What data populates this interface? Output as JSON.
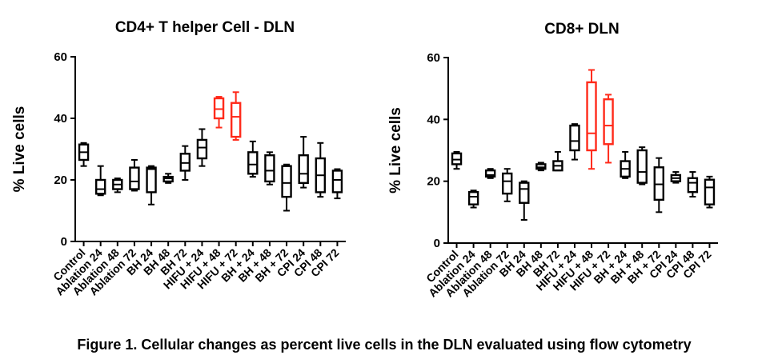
{
  "caption": "Figure 1. Cellular changes as percent live cells in the DLN evaluated using flow cytometry",
  "colors": {
    "default": "#000000",
    "highlight": "#ff2a1a"
  },
  "chart_data": [
    {
      "type": "boxplot",
      "title": "CD4+ T helper Cell - DLN",
      "xlabel": "",
      "ylabel": "% Live cells",
      "ylim": [
        0,
        60
      ],
      "yticks": [
        0,
        20,
        40,
        60
      ],
      "categories": [
        "Control",
        "Ablation 24",
        "Ablation 48",
        "Ablation 72",
        "BH 24",
        "BH 48",
        "BH 72",
        "HIFU + 24",
        "HIFU + 48",
        "HIFU + 72",
        "BH + 24",
        "BH + 48",
        "BH + 72",
        "CPI 24",
        "CPI 48",
        "CPI 72"
      ],
      "highlight": [
        "HIFU + 48",
        "HIFU + 72"
      ],
      "boxes": [
        {
          "min": 24.5,
          "q1": 26.5,
          "median": 29,
          "q3": 31.5,
          "max": 32
        },
        {
          "min": 15,
          "q1": 15.5,
          "median": 17,
          "q3": 20,
          "max": 24.5
        },
        {
          "min": 16,
          "q1": 17,
          "median": 18.5,
          "q3": 20,
          "max": 20.5
        },
        {
          "min": 16.5,
          "q1": 17,
          "median": 19.5,
          "q3": 24,
          "max": 26.5
        },
        {
          "min": 12,
          "q1": 16,
          "median": 23.5,
          "q3": 24,
          "max": 24.5
        },
        {
          "min": 19,
          "q1": 19.5,
          "median": 20.5,
          "q3": 21,
          "max": 22
        },
        {
          "min": 20,
          "q1": 23,
          "median": 25.5,
          "q3": 28.5,
          "max": 31
        },
        {
          "min": 24.5,
          "q1": 27,
          "median": 30.5,
          "q3": 33,
          "max": 36.5
        },
        {
          "min": 37,
          "q1": 40,
          "median": 43,
          "q3": 46.5,
          "max": 47
        },
        {
          "min": 33,
          "q1": 34,
          "median": 40.5,
          "q3": 45,
          "max": 48.5
        },
        {
          "min": 21,
          "q1": 22,
          "median": 25,
          "q3": 29,
          "max": 32.5
        },
        {
          "min": 18.5,
          "q1": 19.5,
          "median": 23,
          "q3": 28,
          "max": 29
        },
        {
          "min": 10,
          "q1": 14.5,
          "median": 19,
          "q3": 24.5,
          "max": 25
        },
        {
          "min": 17.5,
          "q1": 19,
          "median": 22,
          "q3": 28,
          "max": 34
        },
        {
          "min": 14.5,
          "q1": 16,
          "median": 21.5,
          "q3": 27,
          "max": 32
        },
        {
          "min": 14,
          "q1": 16,
          "median": 20,
          "q3": 23,
          "max": 23.5
        }
      ]
    },
    {
      "type": "boxplot",
      "title": "CD8+ DLN",
      "xlabel": "",
      "ylabel": "% Live cells",
      "ylim": [
        0,
        60
      ],
      "yticks": [
        0,
        20,
        40,
        60
      ],
      "categories": [
        "Control",
        "Ablation 24",
        "Ablation 48",
        "Ablation 72",
        "BH 24",
        "BH 48",
        "BH 72",
        "HIFU + 24",
        "HIFU + 48",
        "HIFU + 72",
        "BH + 24",
        "BH + 48",
        "BH + 72",
        "CPI 24",
        "CPI 48",
        "CPI 72"
      ],
      "highlight": [
        "HIFU + 48",
        "HIFU + 72"
      ],
      "boxes": [
        {
          "min": 24,
          "q1": 25.5,
          "median": 27,
          "q3": 29,
          "max": 29.5
        },
        {
          "min": 11.5,
          "q1": 12.5,
          "median": 15,
          "q3": 16.5,
          "max": 17
        },
        {
          "min": 21,
          "q1": 21.5,
          "median": 22,
          "q3": 23.5,
          "max": 24
        },
        {
          "min": 13.5,
          "q1": 16,
          "median": 20,
          "q3": 22.5,
          "max": 24
        },
        {
          "min": 7.5,
          "q1": 13,
          "median": 17.5,
          "q3": 19.5,
          "max": 20
        },
        {
          "min": 23.5,
          "q1": 24,
          "median": 24.5,
          "q3": 25.5,
          "max": 26
        },
        {
          "min": 23.5,
          "q1": 23.5,
          "median": 25,
          "q3": 26.5,
          "max": 29.5
        },
        {
          "min": 27,
          "q1": 30,
          "median": 33,
          "q3": 38,
          "max": 38.5
        },
        {
          "min": 24,
          "q1": 30,
          "median": 35.5,
          "q3": 52,
          "max": 56
        },
        {
          "min": 26,
          "q1": 32,
          "median": 38,
          "q3": 46.5,
          "max": 48
        },
        {
          "min": 21,
          "q1": 21.5,
          "median": 24,
          "q3": 26.5,
          "max": 29.5
        },
        {
          "min": 19,
          "q1": 19.5,
          "median": 23,
          "q3": 30,
          "max": 31
        },
        {
          "min": 10,
          "q1": 14,
          "median": 19,
          "q3": 24.5,
          "max": 27.5
        },
        {
          "min": 19.5,
          "q1": 20,
          "median": 21,
          "q3": 22,
          "max": 23
        },
        {
          "min": 15,
          "q1": 16.5,
          "median": 19.5,
          "q3": 21,
          "max": 23
        },
        {
          "min": 11.5,
          "q1": 12.5,
          "median": 18,
          "q3": 20.5,
          "max": 21.5
        }
      ]
    }
  ]
}
